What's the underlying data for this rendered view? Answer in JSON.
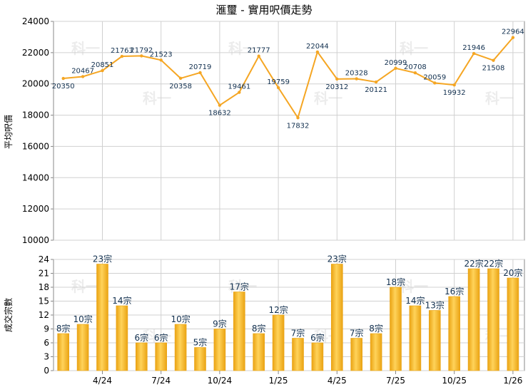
{
  "title": "滙璽 - 實用呎價走勢",
  "colors": {
    "line": "#f5a623",
    "bar_light": "#ffd35a",
    "bar_dark": "#eaa313",
    "grid": "#d0d0d0",
    "axis": "#888888"
  },
  "watermark": "科一",
  "chart_data": [
    {
      "type": "line",
      "ylabel": "平均呎價",
      "ylim": [
        10000,
        24000
      ],
      "yticks": [
        10000,
        12000,
        14000,
        16000,
        18000,
        20000,
        22000,
        24000
      ],
      "grid": true,
      "values": [
        20350,
        20467,
        20851,
        21763,
        21792,
        21523,
        20358,
        20719,
        18632,
        19461,
        21777,
        19759,
        17832,
        22044,
        20312,
        20328,
        20121,
        20999,
        20708,
        20059,
        19932,
        21946,
        21508,
        22964
      ],
      "labels": [
        "20350",
        "20467",
        "20851",
        "21763",
        "21792",
        "21523",
        "20358",
        "20719",
        "18632",
        "19461",
        "21777",
        "19759",
        "17832",
        "22044",
        "20312",
        "20328",
        "20121",
        "20999",
        "20708",
        "20059",
        "19932",
        "21946",
        "21508",
        "22964"
      ]
    },
    {
      "type": "bar",
      "ylabel": "成交宗數",
      "ylim": [
        0,
        24
      ],
      "yticks": [
        0,
        3,
        6,
        9,
        12,
        15,
        18,
        21,
        24
      ],
      "grid": true,
      "values": [
        8,
        10,
        23,
        14,
        6,
        6,
        10,
        5,
        9,
        17,
        8,
        12,
        7,
        6,
        23,
        7,
        8,
        18,
        14,
        13,
        16,
        22,
        22,
        20
      ],
      "labels": [
        "8宗",
        "10宗",
        "23宗",
        "14宗",
        "6宗",
        "6宗",
        "10宗",
        "5宗",
        "9宗",
        "17宗",
        "8宗",
        "12宗",
        "7宗",
        "6宗",
        "23宗",
        "7宗",
        "8宗",
        "18宗",
        "14宗",
        "13宗",
        "16宗",
        "22宗",
        "22宗",
        "20宗"
      ],
      "xticks": [
        {
          "index": 2,
          "label": "4/24"
        },
        {
          "index": 5,
          "label": "7/24"
        },
        {
          "index": 8,
          "label": "10/24"
        },
        {
          "index": 11,
          "label": "1/25"
        },
        {
          "index": 14,
          "label": "4/25"
        },
        {
          "index": 17,
          "label": "7/25"
        },
        {
          "index": 20,
          "label": "10/25"
        },
        {
          "index": 23,
          "label": "1/26"
        }
      ]
    }
  ]
}
